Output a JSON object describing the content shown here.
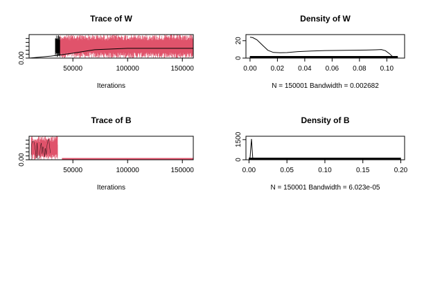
{
  "chart_data": [
    {
      "type": "line",
      "title": "Trace of W",
      "xlabel": "Iterations",
      "ylabel": "",
      "xlim": [
        10000,
        160000
      ],
      "ylim": [
        0,
        0.12
      ],
      "x_ticks": [
        50000,
        100000,
        150000
      ],
      "x_tick_labels": [
        "50000",
        "100000",
        "150000"
      ],
      "y_ticks": [
        0.0
      ],
      "y_tick_labels": [
        "0.00"
      ],
      "series": [
        {
          "color": "#000000",
          "shape": "dense trace band",
          "x_range": [
            34000,
            38500
          ],
          "y_range": [
            0.0,
            0.12
          ]
        },
        {
          "color": "#e0536b",
          "shape": "dense trace band",
          "x_range": [
            38500,
            160000
          ],
          "y_range": [
            0.0,
            0.12
          ]
        },
        {
          "color": "#000000",
          "shape": "running mean",
          "x": [
            10000,
            30000,
            50000,
            70000,
            100000,
            130000,
            160000
          ],
          "y": [
            0.0,
            0.01,
            0.025,
            0.043,
            0.05,
            0.05,
            0.05
          ]
        }
      ]
    },
    {
      "type": "line",
      "title": "Density of W",
      "xlabel": "N = 150001   Bandwidth = 0.002682",
      "ylabel": "",
      "xlim": [
        -0.003,
        0.113
      ],
      "ylim": [
        0,
        27
      ],
      "x_ticks": [
        0.0,
        0.02,
        0.04,
        0.06,
        0.08,
        0.1
      ],
      "x_tick_labels": [
        "0.00",
        "0.02",
        "0.04",
        "0.06",
        "0.08",
        "0.10"
      ],
      "y_ticks": [
        0,
        20
      ],
      "y_tick_labels": [
        "0",
        "20"
      ],
      "series": [
        {
          "color": "#000000",
          "x": [
            0.0,
            0.002,
            0.005,
            0.009,
            0.013,
            0.017,
            0.022,
            0.027,
            0.035,
            0.045,
            0.055,
            0.065,
            0.075,
            0.085,
            0.092,
            0.096,
            0.099,
            0.102,
            0.104,
            0.106,
            0.108
          ],
          "y": [
            24,
            23.5,
            21,
            15,
            9,
            6.5,
            6.2,
            6.4,
            7.4,
            8.1,
            8.6,
            8.8,
            9,
            9.2,
            9.5,
            9.8,
            8.5,
            5,
            2,
            0.5,
            0
          ]
        }
      ],
      "rug": true
    },
    {
      "type": "line",
      "title": "Trace of B",
      "xlabel": "Iterations",
      "ylabel": "",
      "xlim": [
        10000,
        160000
      ],
      "ylim": [
        0,
        0.2
      ],
      "x_ticks": [
        50000,
        100000,
        150000
      ],
      "x_tick_labels": [
        "50000",
        "100000",
        "150000"
      ],
      "y_ticks": [
        0.0
      ],
      "y_tick_labels": [
        "0.00"
      ],
      "series": [
        {
          "color": "#e0536b",
          "shape": "dense trace band",
          "x_range": [
            12000,
            36000
          ],
          "y_range": [
            0.0,
            0.2
          ]
        },
        {
          "color": "#e0536b",
          "shape": "sparse spikes",
          "x_range": [
            36000,
            40000
          ],
          "y_range": [
            0.0,
            0.15
          ]
        },
        {
          "color": "#e0536b",
          "shape": "flat",
          "x_range": [
            40000,
            160000
          ],
          "y": 0.002
        },
        {
          "color": "#000000",
          "shape": "trace",
          "x_range": [
            12000,
            30000
          ],
          "y_range": [
            0.0,
            0.2
          ]
        }
      ]
    },
    {
      "type": "line",
      "title": "Density of B",
      "xlabel": "N = 150001   Bandwidth = 6.023e-05",
      "ylabel": "",
      "xlim": [
        -0.004,
        0.205
      ],
      "ylim": [
        0,
        1750
      ],
      "x_ticks": [
        0.0,
        0.05,
        0.1,
        0.15,
        0.2
      ],
      "x_tick_labels": [
        "0.00",
        "0.05",
        "0.10",
        "0.15",
        "0.20"
      ],
      "y_ticks": [
        0,
        1500
      ],
      "y_tick_labels": [
        "0",
        "1500"
      ],
      "series": [
        {
          "color": "#000000",
          "x": [
            0.0,
            0.0015,
            0.0025,
            0.0033,
            0.004,
            0.005,
            0.007,
            0.05,
            0.2
          ],
          "y": [
            0,
            200,
            1000,
            1550,
            900,
            100,
            5,
            0,
            0
          ]
        }
      ],
      "rug": true
    }
  ]
}
